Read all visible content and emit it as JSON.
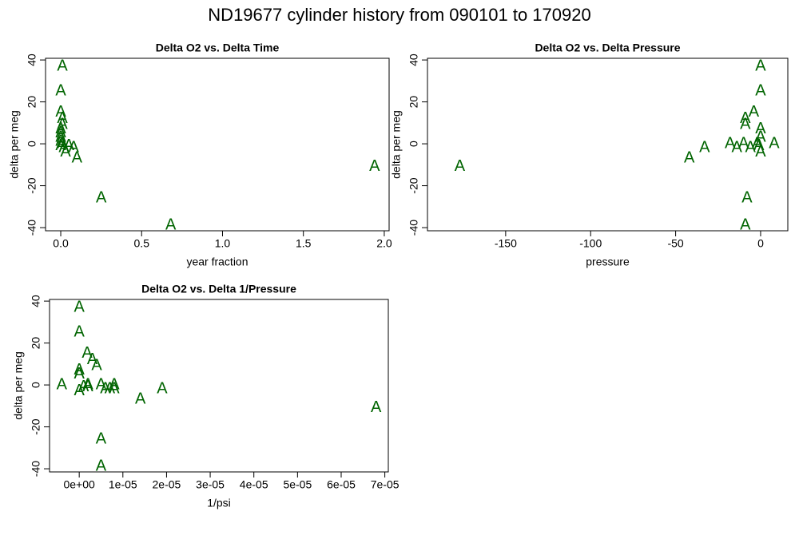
{
  "title": "ND19677   cylinder history from  090101  to  170920",
  "chart_data": [
    {
      "type": "scatter",
      "title": "Delta O2 vs. Delta Time",
      "x_label": "year fraction",
      "y_label": "delta per meg",
      "marker": "A",
      "color": "#006400",
      "xlim": [
        -0.094,
        2.03
      ],
      "ylim": [
        -41.5,
        40.8
      ],
      "xticks": [
        {
          "value": 0,
          "label": "0.0"
        },
        0.5,
        {
          "value": 1,
          "label": "1.0"
        },
        1.5,
        {
          "value": 2,
          "label": "2.0"
        }
      ],
      "yticks": [
        -40,
        -20,
        0,
        20,
        40
      ],
      "x": [
        0.01,
        0.0,
        0.0,
        0.01,
        0.01,
        0.0,
        0.0,
        0.0,
        0.0,
        0.01,
        0.0,
        0.02,
        0.05,
        0.08,
        0.03,
        0.1,
        0.25,
        0.68,
        1.94
      ],
      "values": [
        37,
        25,
        15,
        12,
        9,
        7,
        5,
        3,
        1,
        0,
        -1,
        -2,
        -1,
        -2,
        -4,
        -7,
        -26,
        -39,
        -11
      ]
    },
    {
      "type": "scatter",
      "title": "Delta O2 vs. Delta Pressure",
      "x_label": "pressure",
      "y_label": "delta per meg",
      "marker": "A",
      "color": "#006400",
      "xlim": [
        -196,
        16
      ],
      "ylim": [
        -41.5,
        40.8
      ],
      "xticks": [
        -150,
        -100,
        -50,
        0
      ],
      "yticks": [
        -40,
        -20,
        0,
        20,
        40
      ],
      "x": [
        -177,
        -42,
        -33,
        -18,
        -14,
        -10,
        -9,
        -9,
        -8,
        -9,
        -4,
        0,
        0,
        0,
        0,
        -2,
        -1,
        0,
        8,
        -6
      ],
      "values": [
        -11,
        -7,
        -2,
        0,
        -2,
        0,
        9,
        12,
        -26,
        -39,
        15,
        37,
        25,
        7,
        3,
        0,
        -1,
        -4,
        0,
        -2
      ]
    },
    {
      "type": "scatter",
      "title": "Delta O2 vs. Delta 1/Pressure",
      "x_label": "1/psi",
      "y_label": "delta per meg",
      "marker": "A",
      "color": "#006400",
      "xlim": [
        -6.8e-06,
        7.08e-05
      ],
      "ylim": [
        -41.5,
        40.8
      ],
      "xticks": [
        {
          "value": 0,
          "label": "0e+00"
        },
        {
          "value": 1e-05,
          "label": "1e-05"
        },
        {
          "value": 2e-05,
          "label": "2e-05"
        },
        {
          "value": 3e-05,
          "label": "3e-05"
        },
        {
          "value": 4e-05,
          "label": "4e-05"
        },
        {
          "value": 5e-05,
          "label": "5e-05"
        },
        {
          "value": 6e-05,
          "label": "6e-05"
        },
        {
          "value": 7e-05,
          "label": "7e-05"
        }
      ],
      "yticks": [
        -40,
        -20,
        0,
        20,
        40
      ],
      "x": [
        -4e-06,
        0,
        0,
        0,
        0,
        0,
        1e-06,
        2e-06,
        2e-06,
        1.8e-06,
        3e-06,
        4e-06,
        5e-06,
        5e-06,
        5e-06,
        6e-06,
        7e-06,
        8e-06,
        8e-06,
        1.4e-05,
        1.9e-05,
        6.8e-05
      ],
      "values": [
        0,
        37,
        25,
        7,
        5,
        -3,
        -1,
        0,
        -1,
        15,
        12,
        9,
        -26,
        -39,
        0,
        -2,
        -2,
        0,
        -2,
        -7,
        -2,
        -11
      ]
    }
  ]
}
